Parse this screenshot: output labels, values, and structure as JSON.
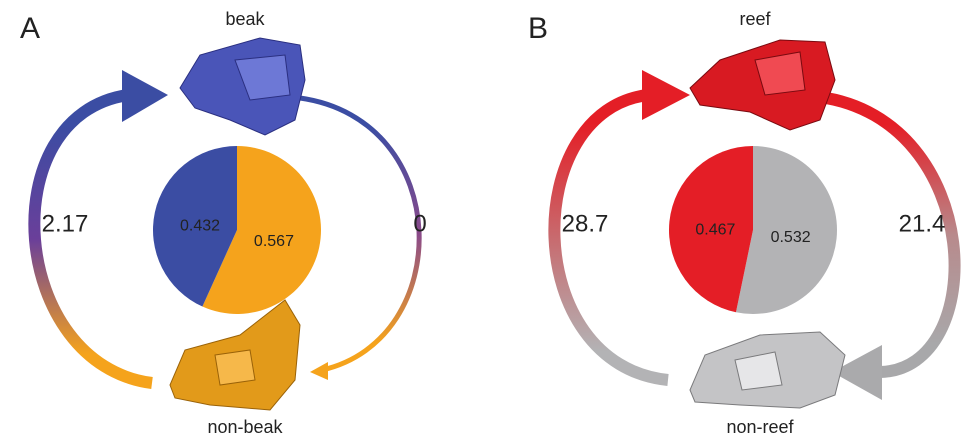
{
  "chart_data": [
    {
      "type": "pie",
      "title": "A",
      "categories": [
        "beak",
        "non-beak"
      ],
      "values": [
        0.432,
        0.567
      ],
      "colors": [
        "#3b4da3",
        "#f5a31c"
      ],
      "rates": [
        2.17,
        0
      ]
    },
    {
      "type": "pie",
      "title": "B",
      "categories": [
        "reef",
        "non-reef"
      ],
      "values": [
        0.467,
        0.532
      ],
      "colors": [
        "#e41e26",
        "#b3b3b5"
      ],
      "rates": [
        28.7,
        21.4
      ]
    }
  ]
}
